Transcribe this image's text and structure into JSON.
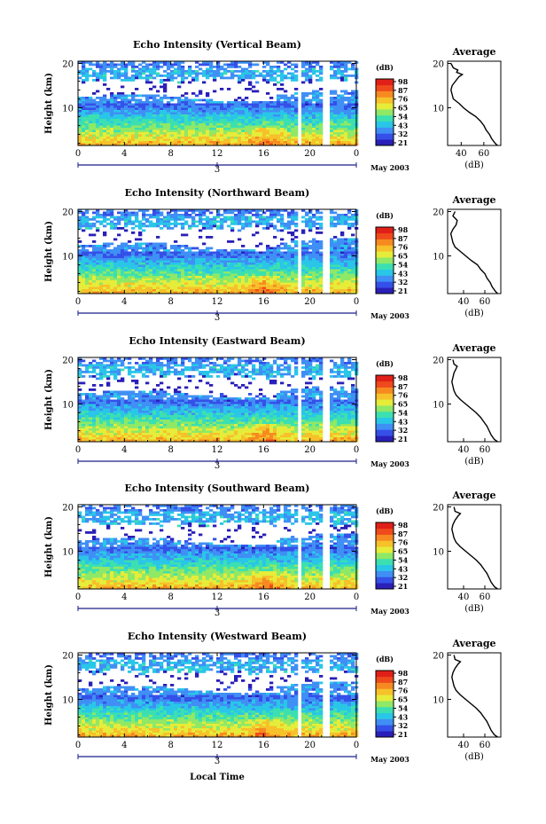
{
  "figure": {
    "xlabel": "Local Time",
    "date_label": "May 2003",
    "day_label": "3",
    "ylabel": "Height (km)",
    "colorbar_unit": "(dB)",
    "avg_title": "Average",
    "avg_xlabel": "(dB)",
    "colorbar_colors": [
      "#2a1fb8",
      "#3550e8",
      "#3f8ff5",
      "#29c6e8",
      "#3ce0b0",
      "#8fe866",
      "#e6ec3a",
      "#f6c12a",
      "#f68a20",
      "#ef4a1c",
      "#e02018"
    ]
  },
  "chart_data": [
    {
      "type": "heatmap",
      "title": "Echo Intensity (Vertical Beam)",
      "xlabel": "Local Time",
      "ylabel": "Height (km)",
      "x_ticks": [
        "0",
        "4",
        "8",
        "12",
        "16",
        "20",
        "0"
      ],
      "y_ticks": [
        "10",
        "20"
      ],
      "xlim": [
        0,
        24
      ],
      "ylim": [
        1.5,
        20.5
      ],
      "colorbar": {
        "label": "(dB)",
        "ticks": [
          "98",
          "87",
          "76",
          "65",
          "54",
          "43",
          "32",
          "21"
        ]
      },
      "data_gaps_hours": [
        19.0,
        21.2
      ],
      "average_profile": {
        "title": "Average",
        "xlabel": "(dB)",
        "x_ticks": [
          "40",
          "60"
        ],
        "xlim": [
          28,
          75
        ],
        "y_ticks": [
          "10",
          "20"
        ],
        "height_km": [
          20,
          19,
          18.5,
          18,
          17.5,
          17,
          16,
          15,
          14,
          13,
          12,
          11,
          10,
          9,
          8,
          7,
          6,
          5,
          4,
          3,
          2,
          1.5
        ],
        "db": [
          31,
          33,
          37,
          36,
          41,
          38,
          35,
          32,
          31,
          32,
          33,
          38,
          42,
          47,
          53,
          57,
          60,
          62,
          65,
          67,
          70,
          72
        ]
      }
    },
    {
      "type": "heatmap",
      "title": "Echo Intensity (Northward Beam)",
      "xlabel": "Local Time",
      "ylabel": "Height (km)",
      "x_ticks": [
        "0",
        "4",
        "8",
        "12",
        "16",
        "20",
        "0"
      ],
      "y_ticks": [
        "10",
        "20"
      ],
      "xlim": [
        0,
        24
      ],
      "ylim": [
        1.5,
        20.5
      ],
      "colorbar": {
        "label": "(dB)",
        "ticks": [
          "98",
          "87",
          "76",
          "65",
          "54",
          "43",
          "32",
          "21"
        ]
      },
      "data_gaps_hours": [
        19.0,
        21.2
      ],
      "average_profile": {
        "title": "Average",
        "xlabel": "(dB)",
        "x_ticks": [
          "40",
          "60"
        ],
        "xlim": [
          25,
          75
        ],
        "y_ticks": [
          "10",
          "20"
        ],
        "height_km": [
          20,
          19,
          18.5,
          18,
          17,
          16,
          15,
          14,
          13,
          12,
          11,
          10,
          9,
          8,
          7,
          6,
          5,
          4,
          3,
          2,
          1.5
        ],
        "db": [
          32,
          30,
          32,
          34,
          33,
          30,
          28,
          29,
          30,
          32,
          37,
          42,
          47,
          53,
          56,
          60,
          62,
          65,
          67,
          70,
          72
        ]
      }
    },
    {
      "type": "heatmap",
      "title": "Echo Intensity (Eastward Beam)",
      "xlabel": "Local Time",
      "ylabel": "Height (km)",
      "x_ticks": [
        "0",
        "4",
        "8",
        "12",
        "16",
        "20",
        "0"
      ],
      "y_ticks": [
        "10",
        "20"
      ],
      "xlim": [
        0,
        24
      ],
      "ylim": [
        1.5,
        20.5
      ],
      "colorbar": {
        "label": "(dB)",
        "ticks": [
          "98",
          "87",
          "76",
          "65",
          "54",
          "43",
          "32",
          "21"
        ]
      },
      "data_gaps_hours": [
        19.0,
        21.2
      ],
      "average_profile": {
        "title": "Average",
        "xlabel": "(dB)",
        "x_ticks": [
          "40",
          "60"
        ],
        "xlim": [
          25,
          75
        ],
        "y_ticks": [
          "10",
          "20"
        ],
        "height_km": [
          20,
          19,
          18.5,
          18,
          17,
          16,
          15,
          14,
          13,
          12,
          11,
          10,
          9,
          8,
          7,
          6,
          5,
          4,
          3,
          2,
          1.5
        ],
        "db": [
          30,
          31,
          34,
          33,
          31,
          30,
          29,
          30,
          31,
          33,
          37,
          42,
          47,
          52,
          56,
          59,
          62,
          64,
          66,
          69,
          72
        ]
      }
    },
    {
      "type": "heatmap",
      "title": "Echo Intensity (Southward Beam)",
      "xlabel": "Local Time",
      "ylabel": "Height (km)",
      "x_ticks": [
        "0",
        "4",
        "8",
        "12",
        "16",
        "20",
        "0"
      ],
      "y_ticks": [
        "10",
        "20"
      ],
      "xlim": [
        0,
        24
      ],
      "ylim": [
        1.5,
        20.5
      ],
      "colorbar": {
        "label": "(dB)",
        "ticks": [
          "98",
          "87",
          "76",
          "65",
          "54",
          "43",
          "32",
          "21"
        ]
      },
      "data_gaps_hours": [
        19.0,
        21.2
      ],
      "average_profile": {
        "title": "Average",
        "xlabel": "(dB)",
        "x_ticks": [
          "40",
          "60"
        ],
        "xlim": [
          25,
          75
        ],
        "y_ticks": [
          "10",
          "20"
        ],
        "height_km": [
          20,
          19,
          18.5,
          18,
          17,
          16,
          15,
          14,
          13,
          12,
          11,
          10,
          9,
          8,
          7,
          6,
          5,
          4,
          3,
          2,
          1.5
        ],
        "db": [
          31,
          32,
          37,
          35,
          32,
          30,
          29,
          30,
          31,
          33,
          37,
          42,
          47,
          52,
          56,
          59,
          62,
          64,
          66,
          69,
          72
        ]
      }
    },
    {
      "type": "heatmap",
      "title": "Echo Intensity (Westward Beam)",
      "xlabel": "Local Time",
      "ylabel": "Height (km)",
      "x_ticks": [
        "0",
        "4",
        "8",
        "12",
        "16",
        "20",
        "0"
      ],
      "y_ticks": [
        "10",
        "20"
      ],
      "xlim": [
        0,
        24
      ],
      "ylim": [
        1.5,
        20.5
      ],
      "colorbar": {
        "label": "(dB)",
        "ticks": [
          "98",
          "87",
          "76",
          "65",
          "54",
          "43",
          "32",
          "21"
        ]
      },
      "data_gaps_hours": [
        19.0,
        21.2
      ],
      "average_profile": {
        "title": "Average",
        "xlabel": "(dB)",
        "x_ticks": [
          "40",
          "60"
        ],
        "xlim": [
          25,
          75
        ],
        "y_ticks": [
          "10",
          "20"
        ],
        "height_km": [
          20,
          19,
          18.5,
          18,
          17,
          16,
          15,
          14,
          13,
          12,
          11,
          10,
          9,
          8,
          7,
          6,
          5,
          4,
          3,
          2,
          1.5
        ],
        "db": [
          31,
          32,
          37,
          35,
          32,
          30,
          29,
          30,
          31,
          33,
          37,
          42,
          47,
          52,
          56,
          59,
          62,
          64,
          66,
          69,
          72
        ]
      }
    }
  ]
}
